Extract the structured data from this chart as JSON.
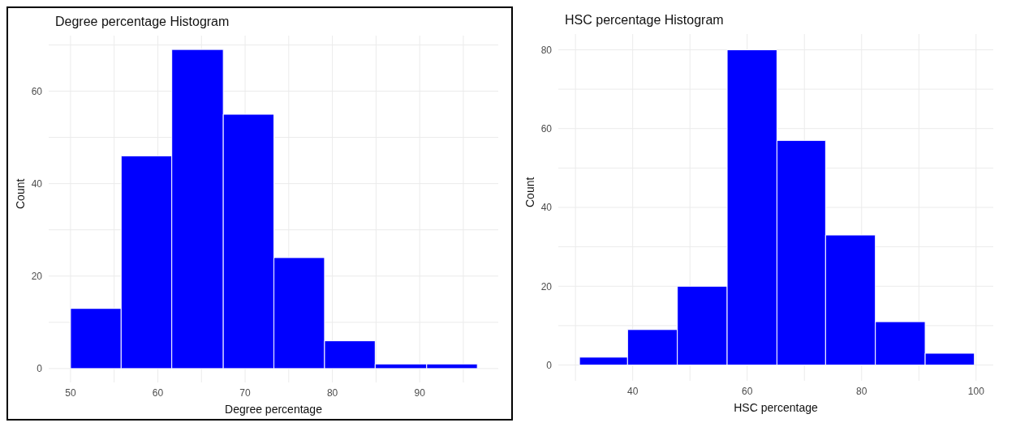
{
  "chart_data": [
    {
      "type": "histogram",
      "title": "Degree percentage Histogram",
      "xlabel": "Degree percentage",
      "ylabel": "Count",
      "bins": [
        50,
        55.8,
        61.6,
        67.5,
        73.3,
        79.1,
        84.9,
        90.8,
        96.6
      ],
      "values": [
        13,
        46,
        69,
        55,
        24,
        6,
        1,
        1
      ],
      "color": "#0000ff",
      "xlim": [
        47.5,
        99
      ],
      "ylim": [
        -3,
        72
      ],
      "xticks": [
        50,
        {
          "value": 55,
          "label": null
        },
        60,
        {
          "value": 65,
          "label": null
        },
        70,
        {
          "value": 75,
          "label": null
        },
        80,
        {
          "value": 85,
          "label": null
        },
        90,
        {
          "value": 95,
          "label": null
        }
      ],
      "yticks": [
        0,
        {
          "value": 10,
          "label": null
        },
        20,
        {
          "value": 30,
          "label": null
        },
        40,
        {
          "value": 50,
          "label": null
        },
        60,
        {
          "value": 70,
          "label": null
        }
      ],
      "grid": true
    },
    {
      "type": "histogram",
      "title": "HSC percentage Histogram",
      "xlabel": "HSC percentage",
      "ylabel": "Count",
      "bins": [
        30.7,
        39.1,
        47.8,
        56.5,
        65.2,
        73.7,
        82.4,
        91.1,
        99.7
      ],
      "values": [
        2,
        9,
        20,
        80,
        57,
        33,
        11,
        3
      ],
      "color": "#0000ff",
      "xlim": [
        27,
        103
      ],
      "ylim": [
        -4,
        84
      ],
      "xticks": [
        {
          "value": 30,
          "label": null
        },
        40,
        {
          "value": 50,
          "label": null
        },
        60,
        {
          "value": 70,
          "label": null
        },
        80,
        {
          "value": 90,
          "label": null
        },
        100
      ],
      "yticks": [
        0,
        {
          "value": 10,
          "label": null
        },
        20,
        {
          "value": 30,
          "label": null
        },
        40,
        {
          "value": 50,
          "label": null
        },
        60,
        {
          "value": 70,
          "label": null
        },
        80
      ],
      "grid": true
    }
  ]
}
